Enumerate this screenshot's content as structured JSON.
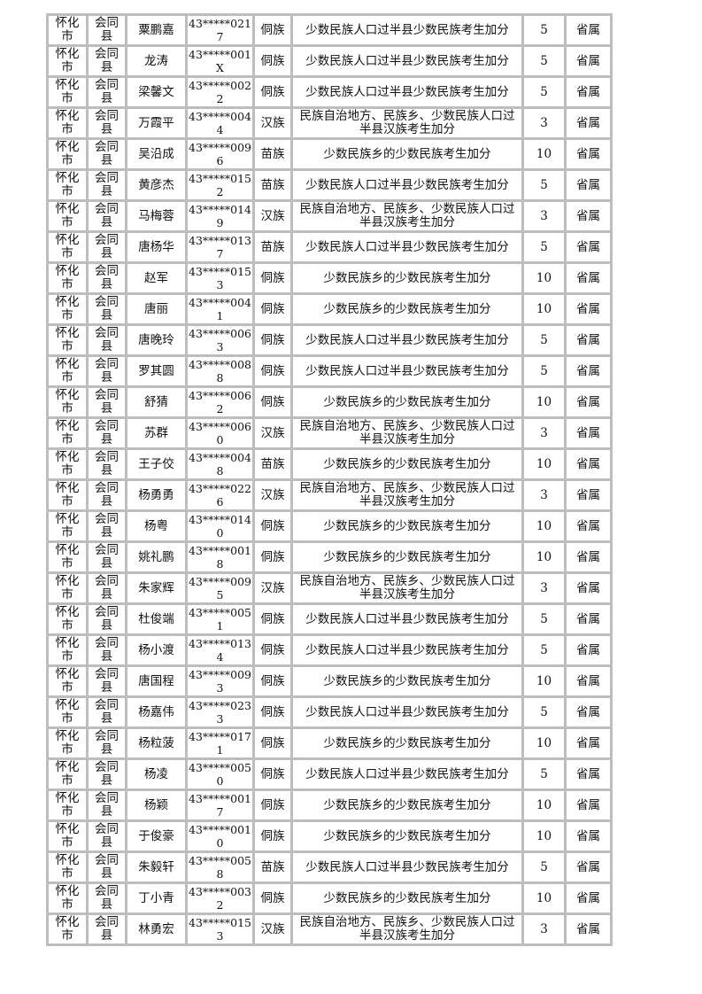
{
  "reasons": {
    "A": "少数民族人口过半县少数民族考生加分",
    "B": "少数民族乡的少数民族考生加分",
    "C": "民族自治地方、民族乡、少数民族人口过半县汉族考生加分"
  },
  "columns": [
    "city",
    "county",
    "name",
    "id",
    "ethnicity",
    "reason",
    "points",
    "level"
  ],
  "rows": [
    [
      "怀化市",
      "会同县",
      "粟鹏嘉",
      "43*****0217",
      "侗族",
      "少数民族人口过半县少数民族考生加分",
      "5",
      "省属"
    ],
    [
      "怀化市",
      "会同县",
      "龙涛",
      "43*****001X",
      "侗族",
      "少数民族人口过半县少数民族考生加分",
      "5",
      "省属"
    ],
    [
      "怀化市",
      "会同县",
      "梁馨文",
      "43*****0022",
      "侗族",
      "少数民族人口过半县少数民族考生加分",
      "5",
      "省属"
    ],
    [
      "怀化市",
      "会同县",
      "万霞平",
      "43*****0044",
      "汉族",
      "民族自治地方、民族乡、少数民族人口过半县汉族考生加分",
      "3",
      "省属"
    ],
    [
      "怀化市",
      "会同县",
      "吴沿成",
      "43*****0096",
      "苗族",
      "少数民族乡的少数民族考生加分",
      "10",
      "省属"
    ],
    [
      "怀化市",
      "会同县",
      "黄彦杰",
      "43*****0152",
      "苗族",
      "少数民族人口过半县少数民族考生加分",
      "5",
      "省属"
    ],
    [
      "怀化市",
      "会同县",
      "马梅蓉",
      "43*****0149",
      "汉族",
      "民族自治地方、民族乡、少数民族人口过半县汉族考生加分",
      "3",
      "省属"
    ],
    [
      "怀化市",
      "会同县",
      "唐杨华",
      "43*****0137",
      "苗族",
      "少数民族人口过半县少数民族考生加分",
      "5",
      "省属"
    ],
    [
      "怀化市",
      "会同县",
      "赵军",
      "43*****0153",
      "侗族",
      "少数民族乡的少数民族考生加分",
      "10",
      "省属"
    ],
    [
      "怀化市",
      "会同县",
      "唐丽",
      "43*****0041",
      "侗族",
      "少数民族乡的少数民族考生加分",
      "10",
      "省属"
    ],
    [
      "怀化市",
      "会同县",
      "唐晚玲",
      "43*****0063",
      "侗族",
      "少数民族人口过半县少数民族考生加分",
      "5",
      "省属"
    ],
    [
      "怀化市",
      "会同县",
      "罗其圆",
      "43*****0088",
      "侗族",
      "少数民族人口过半县少数民族考生加分",
      "5",
      "省属"
    ],
    [
      "怀化市",
      "会同县",
      "舒猜",
      "43*****0062",
      "侗族",
      "少数民族乡的少数民族考生加分",
      "10",
      "省属"
    ],
    [
      "怀化市",
      "会同县",
      "苏群",
      "43*****0060",
      "汉族",
      "民族自治地方、民族乡、少数民族人口过半县汉族考生加分",
      "3",
      "省属"
    ],
    [
      "怀化市",
      "会同县",
      "王子佼",
      "43*****0048",
      "苗族",
      "少数民族乡的少数民族考生加分",
      "10",
      "省属"
    ],
    [
      "怀化市",
      "会同县",
      "杨勇勇",
      "43*****0226",
      "汉族",
      "民族自治地方、民族乡、少数民族人口过半县汉族考生加分",
      "3",
      "省属"
    ],
    [
      "怀化市",
      "会同县",
      "杨粤",
      "43*****0140",
      "侗族",
      "少数民族乡的少数民族考生加分",
      "10",
      "省属"
    ],
    [
      "怀化市",
      "会同县",
      "姚礼鹏",
      "43*****0018",
      "侗族",
      "少数民族乡的少数民族考生加分",
      "10",
      "省属"
    ],
    [
      "怀化市",
      "会同县",
      "朱家辉",
      "43*****0095",
      "汉族",
      "民族自治地方、民族乡、少数民族人口过半县汉族考生加分",
      "3",
      "省属"
    ],
    [
      "怀化市",
      "会同县",
      "杜俊端",
      "43*****0051",
      "侗族",
      "少数民族人口过半县少数民族考生加分",
      "5",
      "省属"
    ],
    [
      "怀化市",
      "会同县",
      "杨小渡",
      "43*****0134",
      "侗族",
      "少数民族人口过半县少数民族考生加分",
      "5",
      "省属"
    ],
    [
      "怀化市",
      "会同县",
      "唐国程",
      "43*****0093",
      "侗族",
      "少数民族乡的少数民族考生加分",
      "10",
      "省属"
    ],
    [
      "怀化市",
      "会同县",
      "杨嘉伟",
      "43*****0233",
      "侗族",
      "少数民族人口过半县少数民族考生加分",
      "5",
      "省属"
    ],
    [
      "怀化市",
      "会同县",
      "杨粒菠",
      "43*****0171",
      "侗族",
      "少数民族乡的少数民族考生加分",
      "10",
      "省属"
    ],
    [
      "怀化市",
      "会同县",
      "杨凌",
      "43*****0050",
      "侗族",
      "少数民族人口过半县少数民族考生加分",
      "5",
      "省属"
    ],
    [
      "怀化市",
      "会同县",
      "杨颖",
      "43*****0017",
      "侗族",
      "少数民族乡的少数民族考生加分",
      "10",
      "省属"
    ],
    [
      "怀化市",
      "会同县",
      "于俊豪",
      "43*****0010",
      "侗族",
      "少数民族乡的少数民族考生加分",
      "10",
      "省属"
    ],
    [
      "怀化市",
      "会同县",
      "朱毅轩",
      "43*****0058",
      "苗族",
      "少数民族人口过半县少数民族考生加分",
      "5",
      "省属"
    ],
    [
      "怀化市",
      "会同县",
      "丁小青",
      "43*****0032",
      "侗族",
      "少数民族乡的少数民族考生加分",
      "10",
      "省属"
    ],
    [
      "怀化市",
      "会同县",
      "林勇宏",
      "43*****0153",
      "汉族",
      "民族自治地方、民族乡、少数民族人口过半县汉族考生加分",
      "3",
      "省属"
    ]
  ]
}
